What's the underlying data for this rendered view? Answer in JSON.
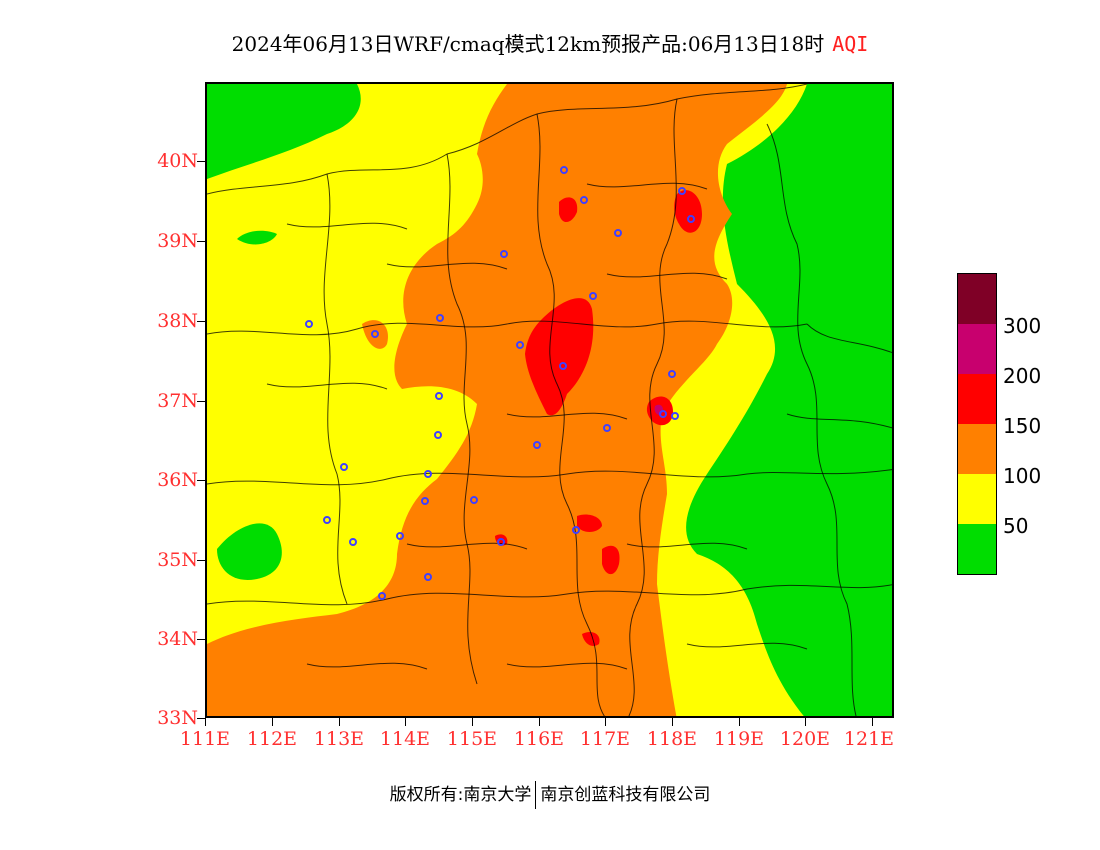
{
  "title": {
    "main": "2024年06月13日WRF/cmaq模式12km预报产品:06月13日18时",
    "variable": "AQI"
  },
  "axes": {
    "latitude_labels": [
      "40N",
      "39N",
      "38N",
      "37N",
      "36N",
      "35N",
      "34N",
      "33N"
    ],
    "longitude_labels": [
      "111E",
      "112E",
      "113E",
      "114E",
      "115E",
      "116E",
      "117E",
      "118E",
      "119E",
      "120E",
      "121E"
    ]
  },
  "legend": {
    "levels": [
      {
        "label": "300",
        "color": "#7f0026"
      },
      {
        "label": "200",
        "color": "#c8006e"
      },
      {
        "label": "150",
        "color": "#ff0000"
      },
      {
        "label": "100",
        "color": "#ff8000"
      },
      {
        "label": "50",
        "color": "#ffff00"
      },
      {
        "label": "",
        "color": "#00dd00"
      }
    ]
  },
  "colors": {
    "good": "#00dd00",
    "moderate": "#ffff00",
    "unhealthy_sensitive": "#ff8000",
    "unhealthy": "#ff0000",
    "very_unhealthy": "#c8006e",
    "hazardous": "#7f0026",
    "station_marker": "#4040ff",
    "axis_label": "#ff3030"
  },
  "footer": {
    "copyright_prefix": "版权所有:",
    "org1": "南京大学",
    "org2": "南京创蓝科技有限公司"
  }
}
